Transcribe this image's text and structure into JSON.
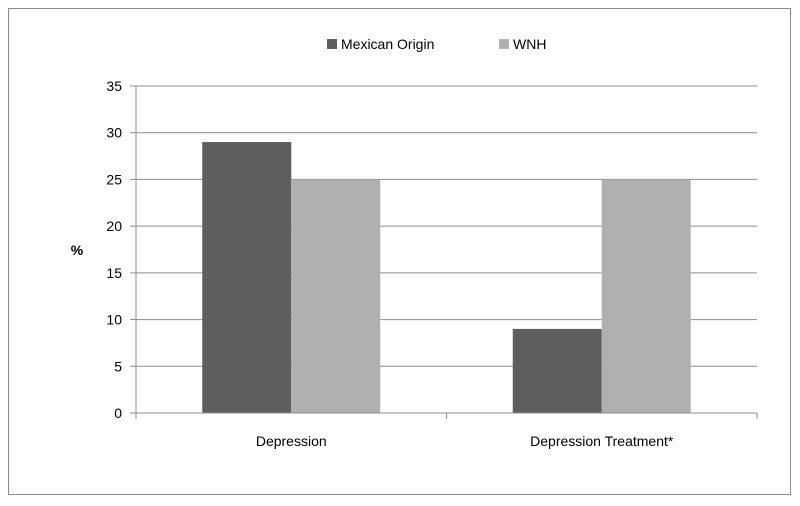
{
  "chart_data": {
    "type": "bar",
    "categories": [
      "Depression",
      "Depression Treatment*"
    ],
    "series": [
      {
        "name": "Mexican Origin",
        "color": "#5e5e5e",
        "values": [
          29,
          9
        ]
      },
      {
        "name": "WNH",
        "color": "#b0b0b0",
        "values": [
          25,
          25
        ]
      }
    ],
    "title": "",
    "xlabel": "",
    "ylabel": "%",
    "ylim": [
      0,
      35
    ],
    "yticks": [
      0,
      5,
      10,
      15,
      20,
      25,
      30,
      35
    ],
    "grid": true,
    "legend_position": "top"
  }
}
